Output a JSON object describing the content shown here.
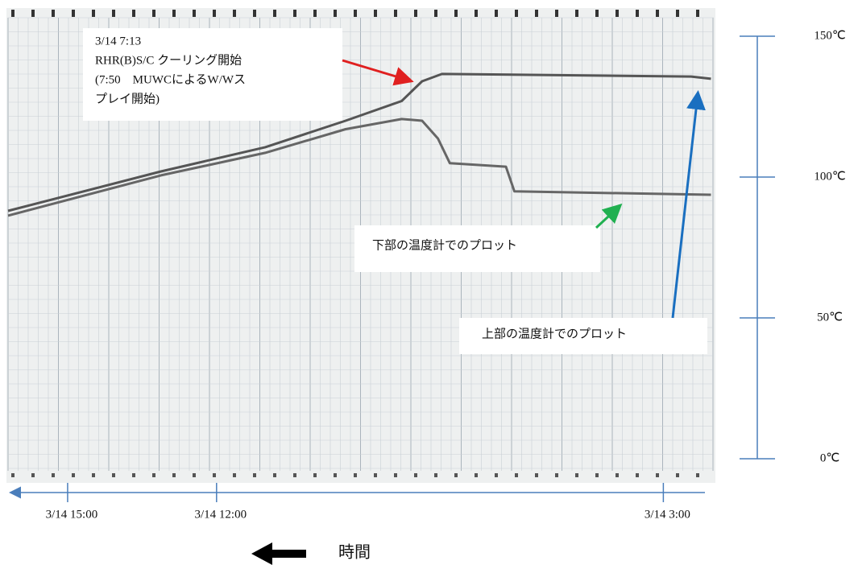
{
  "chart_data": {
    "type": "line",
    "annotation": [
      "3/14 7:13",
      "RHR(B)S/C クーリング開始",
      "(7:50　MUWCによるW/Wス",
      "プレイ開始)"
    ],
    "x_label": "時間",
    "xlim": [
      16.2,
      2.0
    ],
    "xticks": [
      {
        "value": 15,
        "label": "3/14 15:00"
      },
      {
        "value": 12,
        "label": "3/14 12:00"
      },
      {
        "value": 3,
        "label": "3/14 3:00"
      }
    ],
    "ylim": [
      0,
      150
    ],
    "yticks": [
      {
        "value": 0,
        "label": "0℃"
      },
      {
        "value": 50,
        "label": "50℃"
      },
      {
        "value": 100,
        "label": "100℃"
      },
      {
        "value": 150,
        "label": "150℃"
      }
    ],
    "series": [
      {
        "name": "上部の温度計でのプロット",
        "color": "#555555",
        "x": [
          16.2,
          13.12,
          11.02,
          9.4,
          8.27,
          7.86,
          7.46,
          2.44,
          2.04
        ],
        "values": [
          88,
          102,
          110.6,
          120,
          127,
          134,
          136.6,
          135.7,
          134.9
        ]
      },
      {
        "name": "下部の温度計でのプロット",
        "color": "#666666",
        "x": [
          16.2,
          13.12,
          11.02,
          9.4,
          8.27,
          7.86,
          7.54,
          7.3,
          6.17,
          6.0,
          2.04
        ],
        "values": [
          86.3,
          100.6,
          108.6,
          117,
          120.6,
          120,
          113.7,
          104.9,
          103.7,
          94.9,
          93.7
        ]
      }
    ]
  }
}
